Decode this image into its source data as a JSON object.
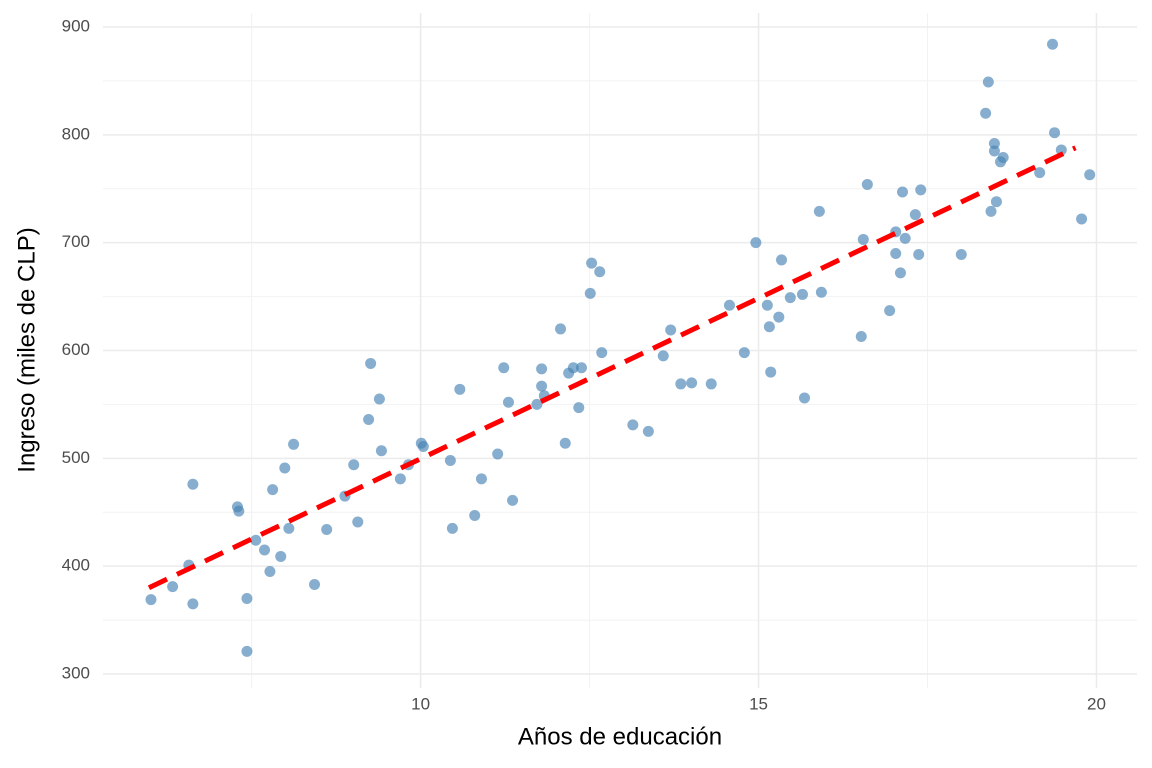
{
  "chart_data": {
    "type": "scatter",
    "xlabel": "Años de educación",
    "ylabel": "Ingreso (miles de CLP)",
    "xlim": [
      5.3,
      20.6
    ],
    "ylim": [
      287,
      913
    ],
    "xticks": [
      10,
      15,
      20
    ],
    "yticks": [
      300,
      400,
      500,
      600,
      700,
      800,
      900
    ],
    "xminorticks": [
      7.5,
      12.5,
      17.5
    ],
    "yminorticks": [
      350,
      450,
      550,
      650,
      750,
      850
    ],
    "grid": true,
    "color": "#4682b4",
    "x": [
      6.01,
      6.33,
      6.57,
      6.63,
      6.63,
      7.29,
      7.31,
      7.43,
      7.43,
      7.56,
      7.69,
      7.77,
      7.81,
      7.93,
      7.99,
      8.05,
      8.12,
      8.43,
      8.61,
      8.88,
      9.01,
      9.07,
      9.23,
      9.26,
      9.39,
      9.42,
      9.7,
      9.82,
      10.01,
      10.04,
      10.44,
      10.47,
      10.58,
      10.8,
      10.9,
      11.14,
      11.23,
      11.3,
      11.36,
      11.72,
      11.79,
      11.79,
      11.83,
      12.07,
      12.14,
      12.19,
      12.26,
      12.34,
      12.38,
      12.51,
      12.53,
      12.65,
      12.68,
      13.14,
      13.37,
      13.59,
      13.7,
      13.85,
      14.01,
      14.3,
      14.57,
      14.79,
      14.96,
      15.13,
      15.16,
      15.18,
      15.3,
      15.34,
      15.47,
      15.65,
      15.68,
      15.9,
      15.93,
      16.52,
      16.55,
      16.61,
      16.94,
      17.03,
      17.03,
      17.1,
      17.13,
      17.17,
      17.32,
      17.37,
      17.4,
      18.0,
      18.36,
      18.4,
      18.44,
      18.49,
      18.49,
      18.52,
      18.58,
      18.62,
      19.16,
      19.35,
      19.38,
      19.48,
      19.78,
      19.9
    ],
    "values": [
      369,
      381,
      401,
      476,
      365,
      455,
      451,
      370,
      321,
      424,
      415,
      395,
      471,
      409,
      491,
      435,
      513,
      383,
      434,
      465,
      494,
      441,
      536,
      588,
      555,
      507,
      481,
      494,
      514,
      511,
      498,
      435,
      564,
      447,
      481,
      504,
      584,
      552,
      461,
      550,
      567,
      583,
      558,
      620,
      514,
      579,
      584,
      547,
      584,
      653,
      681,
      673,
      598,
      531,
      525,
      595,
      619,
      569,
      570,
      569,
      642,
      598,
      700,
      642,
      622,
      580,
      631,
      684,
      649,
      652,
      556,
      729,
      654,
      613,
      703,
      754,
      637,
      710,
      690,
      672,
      747,
      704,
      726,
      689,
      749,
      689,
      820,
      849,
      729,
      792,
      785,
      738,
      775,
      779,
      765,
      884,
      802,
      786,
      722,
      763
    ],
    "trend": {
      "x": [
        5.98,
        19.69
      ],
      "y": [
        380,
        788
      ],
      "color": "#ff0000"
    }
  }
}
